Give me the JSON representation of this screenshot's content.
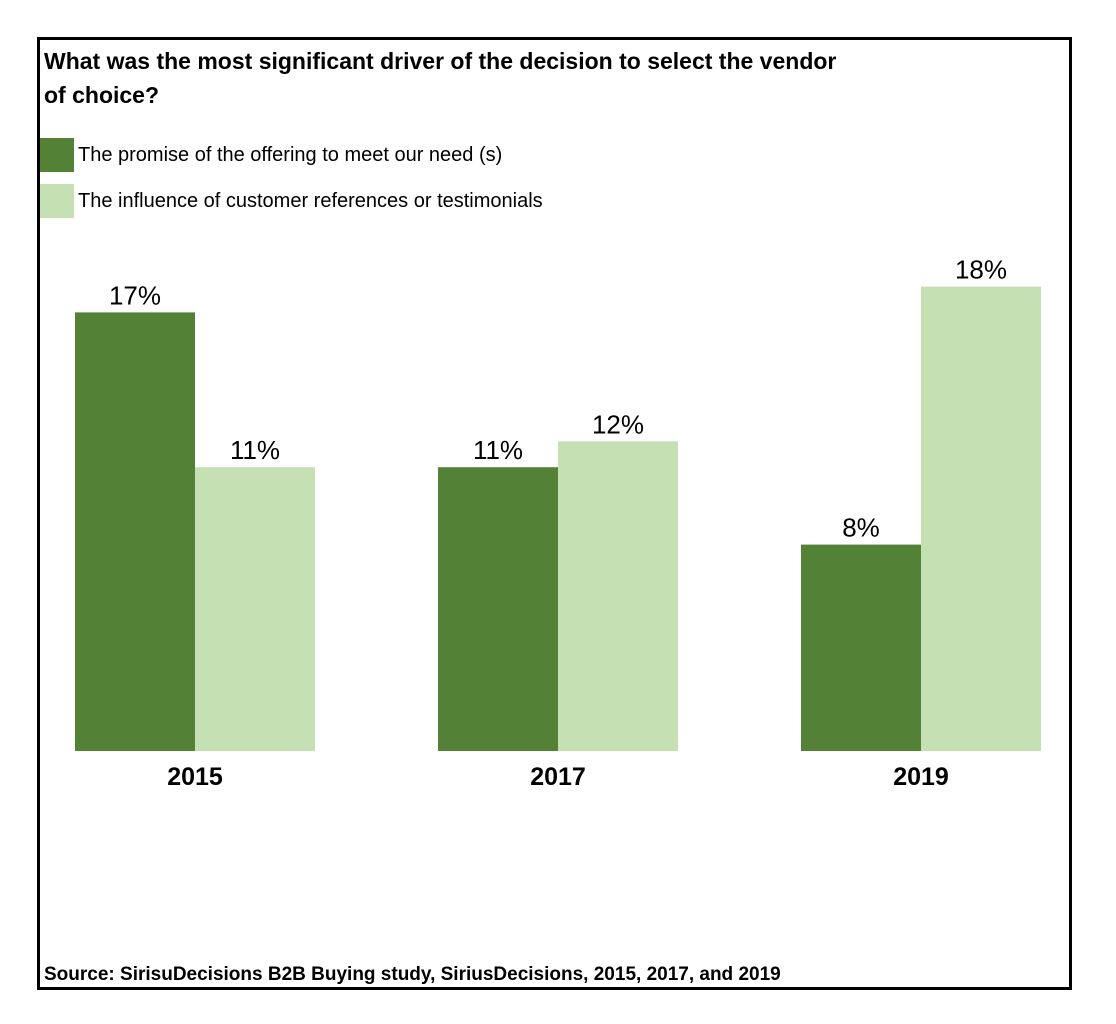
{
  "colors": {
    "series_dark": "#538135",
    "series_light": "#c5e0b3",
    "frame": "#000000"
  },
  "source": "Source: SirisuDecisions B2B Buying study, SiriusDecisions, 2015, 2017, and 2019",
  "chart_data": {
    "type": "bar",
    "title": "What was the most significant driver of the decision to select the vendor of choice?",
    "categories": [
      "2015",
      "2017",
      "2019"
    ],
    "series": [
      {
        "name": "The promise of the offering to meet our need (s)",
        "values": [
          17,
          11,
          8
        ],
        "labels": [
          "17%",
          "11%",
          "8%"
        ],
        "color": "#538135"
      },
      {
        "name": "The influence of customer references or testimonials",
        "values": [
          11,
          12,
          18
        ],
        "labels": [
          "11%",
          "12%",
          "18%"
        ],
        "color": "#c5e0b3"
      }
    ],
    "ylim": [
      0,
      20
    ],
    "unit": "%",
    "grid": false,
    "y_axis_visible": false,
    "legend_position": "top-left"
  }
}
